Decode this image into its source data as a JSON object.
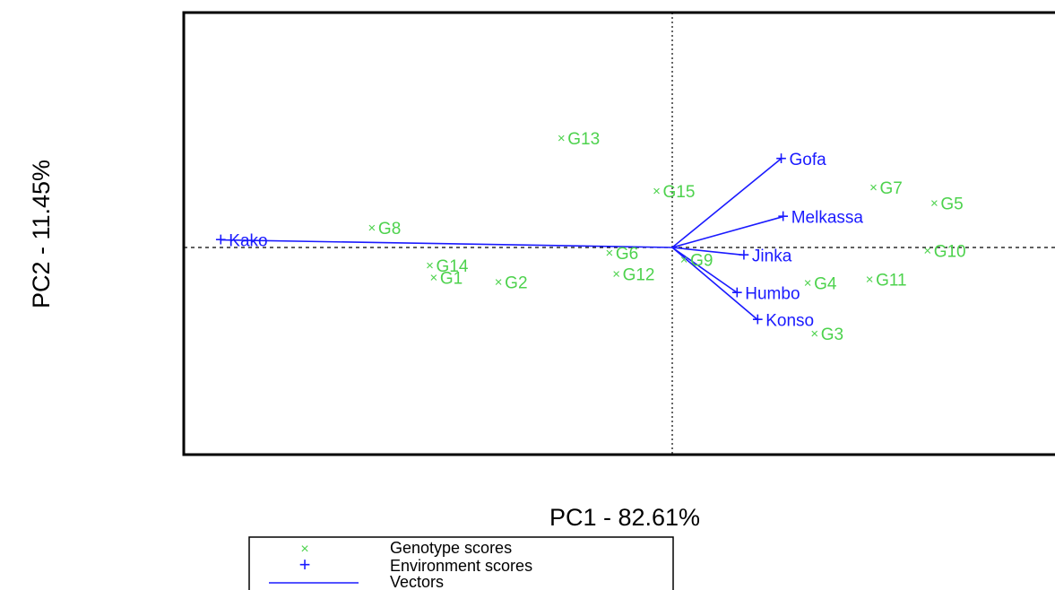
{
  "chart_data": {
    "type": "scatter",
    "subtype": "gge-biplot",
    "xlabel": "PC1 - 82.61%",
    "ylabel": "PC2 - 11.45%",
    "xlim": [
      -5.2,
      4.4
    ],
    "ylim": [
      -2.3,
      2.6
    ],
    "reference_lines": [
      "x=0 dotted",
      "y=0 dashed"
    ],
    "colors": {
      "genotype": "#4dd24d",
      "environment": "#1a1aff",
      "frame": "#000000"
    },
    "legend": {
      "position": "bottom-left",
      "entries": [
        {
          "symbol": "×",
          "label": "Genotype scores",
          "color": "#4dd24d"
        },
        {
          "symbol": "+",
          "label": "Environment scores",
          "color": "#1a1aff"
        },
        {
          "symbol": "line",
          "label": "Vectors",
          "color": "#1a1aff"
        }
      ]
    },
    "genotypes": [
      {
        "name": "G1",
        "x": -2.43,
        "y": -0.4
      },
      {
        "name": "G2",
        "x": -1.77,
        "y": -0.46
      },
      {
        "name": "G3",
        "x": 1.45,
        "y": -1.14
      },
      {
        "name": "G4",
        "x": 1.38,
        "y": -0.47
      },
      {
        "name": "G5",
        "x": 2.67,
        "y": 0.59
      },
      {
        "name": "G6",
        "x": -0.64,
        "y": -0.07
      },
      {
        "name": "G7",
        "x": 2.05,
        "y": 0.8
      },
      {
        "name": "G8",
        "x": -3.06,
        "y": 0.26
      },
      {
        "name": "G9",
        "x": 0.12,
        "y": -0.16
      },
      {
        "name": "G10",
        "x": 2.6,
        "y": -0.04
      },
      {
        "name": "G11",
        "x": 2.01,
        "y": -0.42
      },
      {
        "name": "G12",
        "x": -0.57,
        "y": -0.35
      },
      {
        "name": "G13",
        "x": -1.13,
        "y": 1.45
      },
      {
        "name": "G14",
        "x": -2.47,
        "y": -0.24
      },
      {
        "name": "G15",
        "x": -0.16,
        "y": 0.75
      }
    ],
    "environments": [
      {
        "name": "Kako",
        "x": -4.6,
        "y": 0.1
      },
      {
        "name": "Gofa",
        "x": 1.11,
        "y": 1.18
      },
      {
        "name": "Melkassa",
        "x": 1.13,
        "y": 0.41
      },
      {
        "name": "Jinka",
        "x": 0.73,
        "y": -0.1
      },
      {
        "name": "Humbo",
        "x": 0.66,
        "y": -0.6
      },
      {
        "name": "Konso",
        "x": 0.87,
        "y": -0.96
      }
    ]
  }
}
